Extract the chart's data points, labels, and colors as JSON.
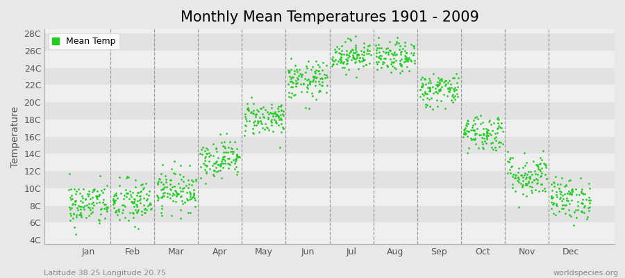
{
  "title": "Monthly Mean Temperatures 1901 - 2009",
  "ylabel": "Temperature",
  "subtitle_left": "Latitude 38.25 Longitude 20.75",
  "subtitle_right": "worldspecies.org",
  "ytick_labels": [
    "4C",
    "6C",
    "8C",
    "10C",
    "12C",
    "14C",
    "16C",
    "18C",
    "20C",
    "22C",
    "24C",
    "26C",
    "28C"
  ],
  "ytick_values": [
    4,
    6,
    8,
    10,
    12,
    14,
    16,
    18,
    20,
    22,
    24,
    26,
    28
  ],
  "months": [
    "Jan",
    "Feb",
    "Mar",
    "Apr",
    "May",
    "Jun",
    "Jul",
    "Aug",
    "Sep",
    "Oct",
    "Nov",
    "Dec"
  ],
  "dot_color": "#22CC22",
  "background_color": "#E8E8E8",
  "band_color_light": "#EFEFEF",
  "band_color_dark": "#E2E2E2",
  "legend_label": "Mean Temp",
  "title_fontsize": 15,
  "label_fontsize": 10,
  "tick_fontsize": 9,
  "num_years": 109,
  "monthly_means": [
    8.1,
    8.3,
    9.8,
    13.5,
    18.2,
    22.5,
    25.5,
    25.2,
    21.5,
    16.5,
    11.5,
    8.8
  ],
  "monthly_stds": [
    1.3,
    1.4,
    1.2,
    1.1,
    1.0,
    1.1,
    0.9,
    0.9,
    1.0,
    1.1,
    1.3,
    1.2
  ],
  "seed": 42,
  "ylim": [
    3.5,
    28.5
  ],
  "xlim": [
    -0.5,
    12.5
  ],
  "dot_size": 4
}
